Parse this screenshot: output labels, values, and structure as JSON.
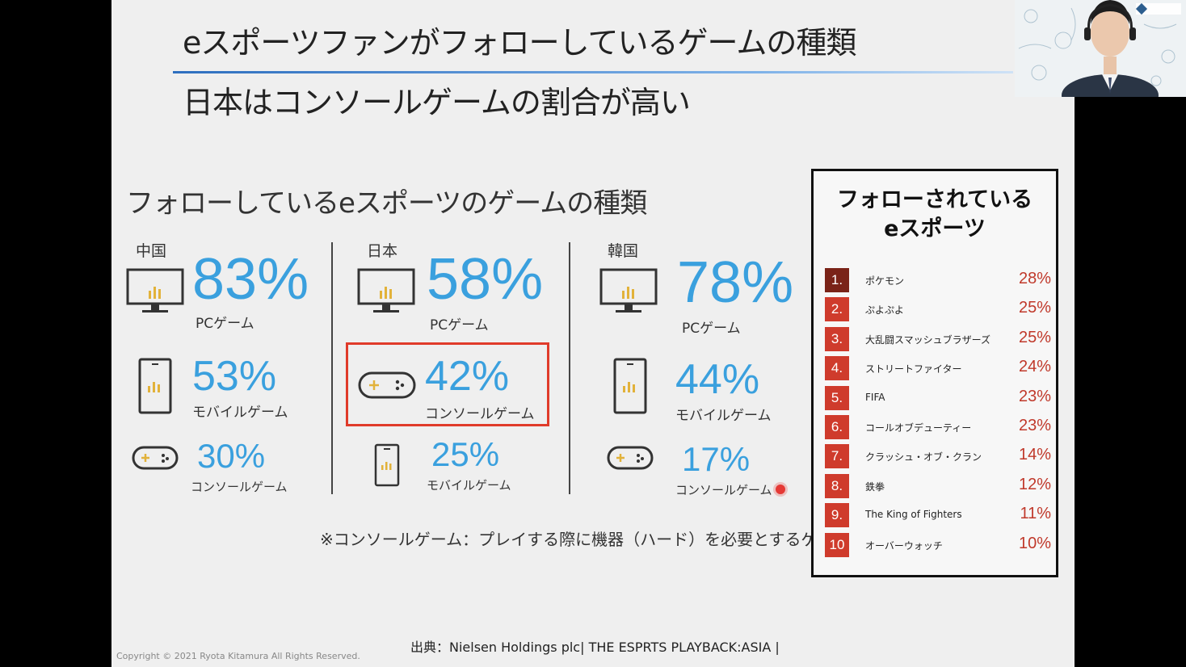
{
  "slide": {
    "title": "eスポーツファンがフォローしているゲームの種類",
    "subtitle": "日本はコンソールゲームの割合が高い",
    "section_title": "フォローしているeスポーツのゲームの種類",
    "note": "※コンソールゲーム：プレイする際に機器（ハード）を必要とするゲーム",
    "source": "出典：Nielsen Holdings plc| THE ESPRTS PLAYBACK:ASIA |",
    "copyright": "Copyright © 2021 Ryota Kitamura All Rights Reserved."
  },
  "countries": [
    {
      "name": "中国",
      "items": [
        {
          "percent": "83%",
          "label": "PCゲーム",
          "icon": "monitor-icon"
        },
        {
          "percent": "53%",
          "label": "モバイルゲーム",
          "icon": "smartphone-icon"
        },
        {
          "percent": "30%",
          "label": "コンソールゲーム",
          "icon": "gamepad-icon"
        }
      ]
    },
    {
      "name": "日本",
      "items": [
        {
          "percent": "58%",
          "label": "PCゲーム",
          "icon": "monitor-icon"
        },
        {
          "percent": "42%",
          "label": "コンソールゲーム",
          "icon": "gamepad-icon"
        },
        {
          "percent": "25%",
          "label": "モバイルゲーム",
          "icon": "smartphone-icon"
        }
      ]
    },
    {
      "name": "韓国",
      "items": [
        {
          "percent": "78%",
          "label": "PCゲーム",
          "icon": "monitor-icon"
        },
        {
          "percent": "44%",
          "label": "モバイルゲーム",
          "icon": "smartphone-icon"
        },
        {
          "percent": "17%",
          "label": "コンソールゲーム",
          "icon": "gamepad-icon"
        }
      ]
    }
  ],
  "ranking": {
    "title_line1": "フォローされている",
    "title_line2": "eスポーツ",
    "items": [
      {
        "rank": "1.",
        "name": "ポケモン",
        "percent": "28%",
        "color": "#7a2318"
      },
      {
        "rank": "2.",
        "name": "ぷよぷよ",
        "percent": "25%",
        "color": "#cf3b2c"
      },
      {
        "rank": "3.",
        "name": "大乱闘スマッシュブラザーズ",
        "percent": "25%",
        "color": "#cf3b2c"
      },
      {
        "rank": "4.",
        "name": "ストリートファイター",
        "percent": "24%",
        "color": "#cf3b2c"
      },
      {
        "rank": "5.",
        "name": "FIFA",
        "percent": "23%",
        "color": "#cf3b2c"
      },
      {
        "rank": "6.",
        "name": "コールオブデューティー",
        "percent": "23%",
        "color": "#cf3b2c"
      },
      {
        "rank": "7.",
        "name": "クラッシュ・オブ・クラン",
        "percent": "14%",
        "color": "#cf3b2c"
      },
      {
        "rank": "8.",
        "name": "鉄拳",
        "percent": "12%",
        "color": "#cf3b2c"
      },
      {
        "rank": "9.",
        "name": "The King of Fighters",
        "percent": "11%",
        "color": "#cf3b2c"
      },
      {
        "rank": "10",
        "name": "オーバーウォッチ",
        "percent": "10%",
        "color": "#cf3b2c"
      }
    ]
  },
  "colors": {
    "accent_blue": "#3aa0de",
    "highlight_red": "#e03b2a",
    "rank_top": "#7a2318",
    "rank_other": "#cf3b2c"
  }
}
